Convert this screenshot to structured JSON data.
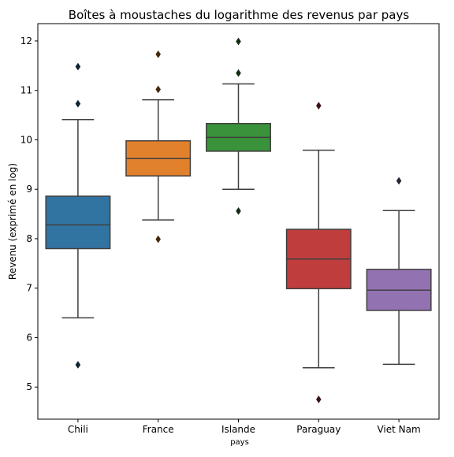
{
  "chart_data": {
    "type": "box",
    "title": "Boîtes à moustaches du logarithme des revenus par pays",
    "xlabel": "pays",
    "ylabel": "Revenu (exprimé en log)",
    "ylim": [
      4.35,
      12.35
    ],
    "yticks": [
      5,
      6,
      7,
      8,
      9,
      10,
      11,
      12
    ],
    "ytick_labels": [
      "5",
      "6",
      "7",
      "8",
      "9",
      "10",
      "11",
      "12"
    ],
    "grid": false,
    "categories": [
      "Chili",
      "France",
      "Islande",
      "Paraguay",
      "Viet Nam"
    ],
    "series": [
      {
        "category": "Chili",
        "color": "#3274a1",
        "whisker_low": 6.4,
        "q1": 7.8,
        "median": 8.28,
        "q3": 8.86,
        "whisker_high": 10.41,
        "outliers": [
          5.45,
          10.73,
          11.48
        ]
      },
      {
        "category": "France",
        "color": "#e1812c",
        "whisker_low": 8.38,
        "q1": 9.27,
        "median": 9.62,
        "q3": 9.98,
        "whisker_high": 10.81,
        "outliers": [
          7.99,
          11.02,
          11.73
        ]
      },
      {
        "category": "Islande",
        "color": "#3a923a",
        "whisker_low": 9.0,
        "q1": 9.77,
        "median": 10.05,
        "q3": 10.33,
        "whisker_high": 11.13,
        "outliers": [
          8.56,
          11.35,
          11.99
        ]
      },
      {
        "category": "Paraguay",
        "color": "#c03d3e",
        "whisker_low": 5.39,
        "q1": 6.99,
        "median": 7.59,
        "q3": 8.19,
        "whisker_high": 9.79,
        "outliers": [
          4.75,
          10.69
        ]
      },
      {
        "category": "Viet Nam",
        "color": "#9372b2",
        "whisker_low": 5.46,
        "q1": 6.55,
        "median": 6.96,
        "q3": 7.38,
        "whisker_high": 8.57,
        "outliers": [
          9.17
        ]
      }
    ]
  }
}
